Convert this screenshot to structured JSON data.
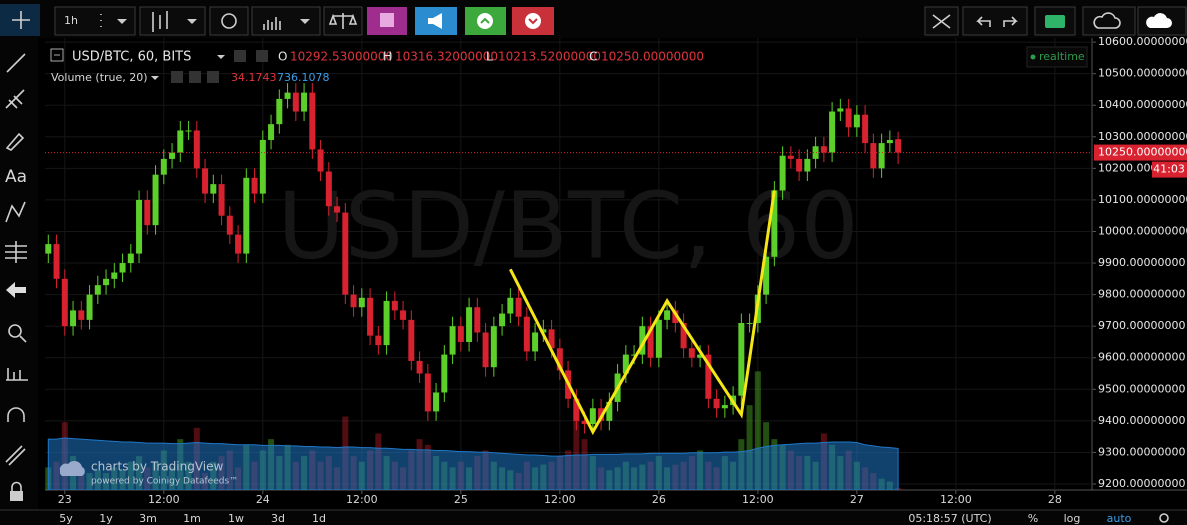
{
  "toolbar": {
    "interval": "1h"
  },
  "left_toolbar": {
    "text_tool": "Aa"
  },
  "chart_data": {
    "type": "candlestick",
    "title": "USD/BTC, 60, BITS",
    "watermark": "USD/BTC, 60",
    "realtime": "realtime",
    "legend_values": [
      {
        "letter": "O",
        "value": 10292.53,
        "label": "10292.53000000"
      },
      {
        "letter": "H",
        "value": 10316.32,
        "label": "10316.32000000"
      },
      {
        "letter": "L",
        "value": 10213.52,
        "label": "10213.52000000"
      },
      {
        "letter": "C",
        "value": 10250,
        "label": "10250.00000000"
      }
    ],
    "up_color": "#5ccf2a",
    "down_color": "#d8222f",
    "x": [
      -2,
      -1,
      0,
      1,
      2,
      3,
      4,
      5,
      6,
      7,
      8,
      9,
      10,
      11,
      12,
      13,
      14,
      15,
      16,
      17,
      18,
      19,
      20,
      21,
      22,
      23,
      24,
      25,
      26,
      27,
      28,
      29,
      30,
      31,
      32,
      33,
      34,
      35,
      36,
      37,
      38,
      39,
      40,
      41,
      42,
      43,
      44,
      45,
      46,
      47,
      48,
      49,
      50,
      51,
      52,
      53,
      54,
      55,
      56,
      57,
      58,
      59,
      60,
      61,
      62,
      63,
      64,
      65,
      66,
      67,
      68,
      69,
      70,
      71,
      72,
      73,
      74,
      75,
      76,
      77,
      78,
      79,
      80,
      81,
      82,
      83,
      84,
      85,
      86,
      87,
      88,
      89,
      90,
      91,
      92,
      93,
      94,
      95,
      96,
      97,
      98,
      99,
      100,
      101
    ],
    "open": [
      9930,
      9960,
      9850,
      9700,
      9750,
      9720,
      9800,
      9830,
      9850,
      9870,
      9900,
      9930,
      10100,
      10020,
      10180,
      10230,
      10250,
      10320,
      10320,
      10200,
      10120,
      10150,
      10050,
      9990,
      9930,
      10170,
      10120,
      10290,
      10340,
      10420,
      10440,
      10380,
      10440,
      10260,
      10190,
      10080,
      10060,
      9800,
      9760,
      9790,
      9670,
      9640,
      9780,
      9750,
      9720,
      9590,
      9550,
      9430,
      9490,
      9610,
      9700,
      9650,
      9760,
      9680,
      9570,
      9700,
      9740,
      9790,
      9730,
      9620,
      9680,
      9690,
      9630,
      9560,
      9470,
      9400,
      9390,
      9440,
      9400,
      9460,
      9550,
      9610,
      9610,
      9700,
      9600,
      9720,
      9750,
      9710,
      9630,
      9600,
      9610,
      9470,
      9440,
      9450,
      9480,
      9710,
      9710,
      9800,
      9920,
      10130,
      10240,
      10230,
      10190,
      10230,
      10270,
      10250,
      10380,
      10390,
      10330,
      10370,
      10280,
      10200,
      10280,
      10292.53
    ],
    "high": [
      9990,
      9990,
      9880,
      9780,
      9780,
      9830,
      9860,
      9880,
      9900,
      9930,
      9960,
      10130,
      10130,
      10210,
      10260,
      10280,
      10350,
      10350,
      10350,
      10230,
      10180,
      10180,
      10080,
      10020,
      10200,
      10200,
      10320,
      10370,
      10450,
      10470,
      10470,
      10470,
      10470,
      10290,
      10220,
      10110,
      10090,
      9830,
      9820,
      9820,
      9700,
      9810,
      9810,
      9780,
      9750,
      9620,
      9580,
      9520,
      9640,
      9730,
      9730,
      9790,
      9790,
      9710,
      9730,
      9770,
      9820,
      9820,
      9760,
      9710,
      9720,
      9720,
      9660,
      9590,
      9500,
      9430,
      9470,
      9470,
      9490,
      9580,
      9640,
      9640,
      9730,
      9730,
      9750,
      9780,
      9780,
      9740,
      9660,
      9640,
      9640,
      9500,
      9480,
      9510,
      9740,
      9740,
      9830,
      9950,
      10160,
      10270,
      10270,
      10260,
      10260,
      10300,
      10300,
      10410,
      10420,
      10420,
      10400,
      10400,
      10310,
      10310,
      10320,
      10316.32
    ],
    "low": [
      9900,
      9820,
      9670,
      9670,
      9690,
      9690,
      9770,
      9800,
      9820,
      9840,
      9870,
      9900,
      9990,
      9990,
      10150,
      10200,
      10220,
      10290,
      10170,
      10090,
      10090,
      10020,
      9960,
      9900,
      9900,
      10090,
      10090,
      10260,
      10310,
      10390,
      10350,
      10350,
      10230,
      10160,
      10050,
      10030,
      9770,
      9730,
      9730,
      9640,
      9610,
      9610,
      9720,
      9690,
      9560,
      9520,
      9400,
      9400,
      9460,
      9580,
      9620,
      9620,
      9650,
      9540,
      9540,
      9670,
      9710,
      9700,
      9590,
      9590,
      9650,
      9600,
      9530,
      9440,
      9370,
      9360,
      9360,
      9370,
      9370,
      9430,
      9520,
      9580,
      9580,
      9570,
      9570,
      9690,
      9680,
      9600,
      9570,
      9570,
      9440,
      9410,
      9410,
      9420,
      9450,
      9680,
      9680,
      9770,
      9890,
      10100,
      10200,
      10160,
      10160,
      10200,
      10220,
      10220,
      10350,
      10300,
      10300,
      10250,
      10170,
      10170,
      10250,
      10213.52
    ],
    "close": [
      9960,
      9850,
      9700,
      9750,
      9720,
      9800,
      9830,
      9850,
      9870,
      9900,
      9930,
      10100,
      10020,
      10180,
      10230,
      10250,
      10320,
      10320,
      10200,
      10120,
      10150,
      10050,
      9990,
      9930,
      10170,
      10120,
      10290,
      10340,
      10420,
      10440,
      10380,
      10440,
      10260,
      10190,
      10080,
      10060,
      9800,
      9760,
      9790,
      9670,
      9640,
      9780,
      9750,
      9720,
      9590,
      9550,
      9430,
      9490,
      9610,
      9700,
      9650,
      9760,
      9680,
      9570,
      9700,
      9740,
      9790,
      9730,
      9620,
      9680,
      9690,
      9630,
      9560,
      9470,
      9400,
      9390,
      9440,
      9400,
      9460,
      9550,
      9610,
      9610,
      9700,
      9600,
      9720,
      9750,
      9710,
      9630,
      9600,
      9610,
      9470,
      9440,
      9450,
      9480,
      9710,
      9710,
      9800,
      9920,
      10130,
      10240,
      10230,
      10190,
      10230,
      10270,
      10250,
      10380,
      10390,
      10330,
      10370,
      10280,
      10200,
      10280,
      10290,
      10250
    ],
    "volume": {
      "name": "Volume (true, 20)",
      "ylim": [
        0,
        8000
      ],
      "ma_color": "#1f78c8",
      "values": [
        400,
        500,
        1200,
        600,
        400,
        300,
        350,
        300,
        400,
        350,
        500,
        600,
        400,
        500,
        700,
        400,
        900,
        500,
        1100,
        300,
        500,
        600,
        700,
        400,
        800,
        500,
        700,
        900,
        600,
        800,
        500,
        600,
        700,
        500,
        600,
        400,
        1300,
        600,
        500,
        700,
        1000,
        600,
        500,
        400,
        700,
        900,
        800,
        600,
        500,
        400,
        500,
        400,
        600,
        700,
        500,
        400,
        350,
        300,
        500,
        400,
        450,
        500,
        600,
        700,
        1500,
        900,
        600,
        400,
        350,
        400,
        500,
        400,
        450,
        500,
        600,
        400,
        450,
        500,
        600,
        700,
        500,
        400,
        600,
        500,
        900,
        1500,
        2100,
        1200,
        900,
        800,
        700,
        600,
        600,
        500,
        1000,
        800,
        600,
        700,
        500,
        400,
        300,
        200,
        150,
        34.1743
      ],
      "ma": [
        900,
        900,
        920,
        910,
        900,
        890,
        880,
        870,
        860,
        850,
        850,
        840,
        830,
        830,
        830,
        820,
        820,
        830,
        840,
        830,
        820,
        820,
        810,
        800,
        800,
        800,
        790,
        790,
        790,
        780,
        780,
        770,
        770,
        760,
        760,
        750,
        760,
        760,
        750,
        750,
        740,
        740,
        730,
        720,
        720,
        710,
        710,
        700,
        700,
        690,
        680,
        680,
        670,
        670,
        660,
        650,
        640,
        630,
        620,
        620,
        610,
        600,
        600,
        610,
        620,
        620,
        630,
        630,
        630,
        630,
        640,
        640,
        640,
        650,
        650,
        650,
        650,
        650,
        660,
        660,
        660,
        660,
        670,
        670,
        680,
        700,
        740,
        770,
        790,
        800,
        810,
        820,
        830,
        830,
        840,
        850,
        850,
        850,
        840,
        800,
        780,
        760,
        750,
        736.1078
      ]
    },
    "drawing": {
      "color": "#f5e616",
      "x": [
        54,
        64,
        73,
        82,
        86
      ],
      "y": [
        9880,
        9365,
        9780,
        9420,
        10130
      ]
    },
    "last_price": {
      "value": 10250,
      "label": "10250.00000000"
    },
    "countdown": "41:03",
    "xlim": [
      -2.4,
      124.5
    ],
    "ylim": [
      9181,
      10613
    ],
    "grid": true,
    "xticks": [
      {
        "value": 0,
        "label": "23"
      },
      {
        "value": 12,
        "label": "12:00"
      },
      {
        "value": 24,
        "label": "24"
      },
      {
        "value": 36,
        "label": "12:00"
      },
      {
        "value": 48,
        "label": "25"
      },
      {
        "value": 60,
        "label": "12:00"
      },
      {
        "value": 72,
        "label": "26"
      },
      {
        "value": 84,
        "label": "12:00"
      },
      {
        "value": 96,
        "label": "27"
      },
      {
        "value": 108,
        "label": "12:00"
      },
      {
        "value": 120,
        "label": "28"
      }
    ],
    "yticks": [
      {
        "value": 10600,
        "label": "10600.00000000"
      },
      {
        "value": 10500,
        "label": "10500.00000000"
      },
      {
        "value": 10400,
        "label": "10400.00000000"
      },
      {
        "value": 10300,
        "label": "10300.00000000"
      },
      {
        "value": 10200,
        "label": "10200.00000000"
      },
      {
        "value": 10100,
        "label": "10100.00000000"
      },
      {
        "value": 10000,
        "label": "10000.00000000"
      },
      {
        "value": 9900,
        "label": "9900.00000000"
      },
      {
        "value": 9800,
        "label": "9800.00000000"
      },
      {
        "value": 9700,
        "label": "9700.00000000"
      },
      {
        "value": 9600,
        "label": "9600.00000000"
      },
      {
        "value": 9500,
        "label": "9500.00000000"
      },
      {
        "value": 9400,
        "label": "9400.00000000"
      },
      {
        "value": 9300,
        "label": "9300.00000000"
      },
      {
        "value": 9200,
        "label": "9200.00000000"
      }
    ]
  },
  "branding": {
    "line1": "charts by TradingView",
    "line2": "powered by Coinigy Datafeeds™"
  },
  "footer": {
    "ranges": [
      "5y",
      "1y",
      "3m",
      "1m",
      "1w",
      "3d",
      "1d"
    ],
    "clock": "05:18:57 (UTC)",
    "percent": "%",
    "log": "log",
    "auto": "auto"
  }
}
